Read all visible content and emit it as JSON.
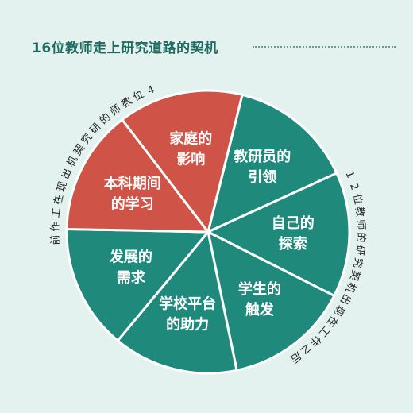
{
  "title": "16位教师走上研究道路的契机",
  "colors": {
    "teal": "#1f8a7c",
    "red": "#cf5346",
    "label": "#ffffff",
    "annotation": "#222222",
    "background": "#e3f2ee"
  },
  "chart_data": {
    "type": "pie",
    "slices": [
      {
        "label": "教研员的\n引领",
        "value": 1,
        "group": "after"
      },
      {
        "label": "自己的\n探索",
        "value": 1,
        "group": "after"
      },
      {
        "label": "学生的\n触发",
        "value": 1,
        "group": "after"
      },
      {
        "label": "学校平台\n的助力",
        "value": 1,
        "group": "after"
      },
      {
        "label": "发展的\n需求",
        "value": 1,
        "group": "after"
      },
      {
        "label": "本科期间\n的学习",
        "value": 1,
        "group": "before"
      },
      {
        "label": "家庭的\n影响",
        "value": 1,
        "group": "before"
      }
    ],
    "annotations": {
      "before": "4位教师的研究契机出现在工作前",
      "after": "12位教师的研究契机出现在工作之后"
    }
  }
}
